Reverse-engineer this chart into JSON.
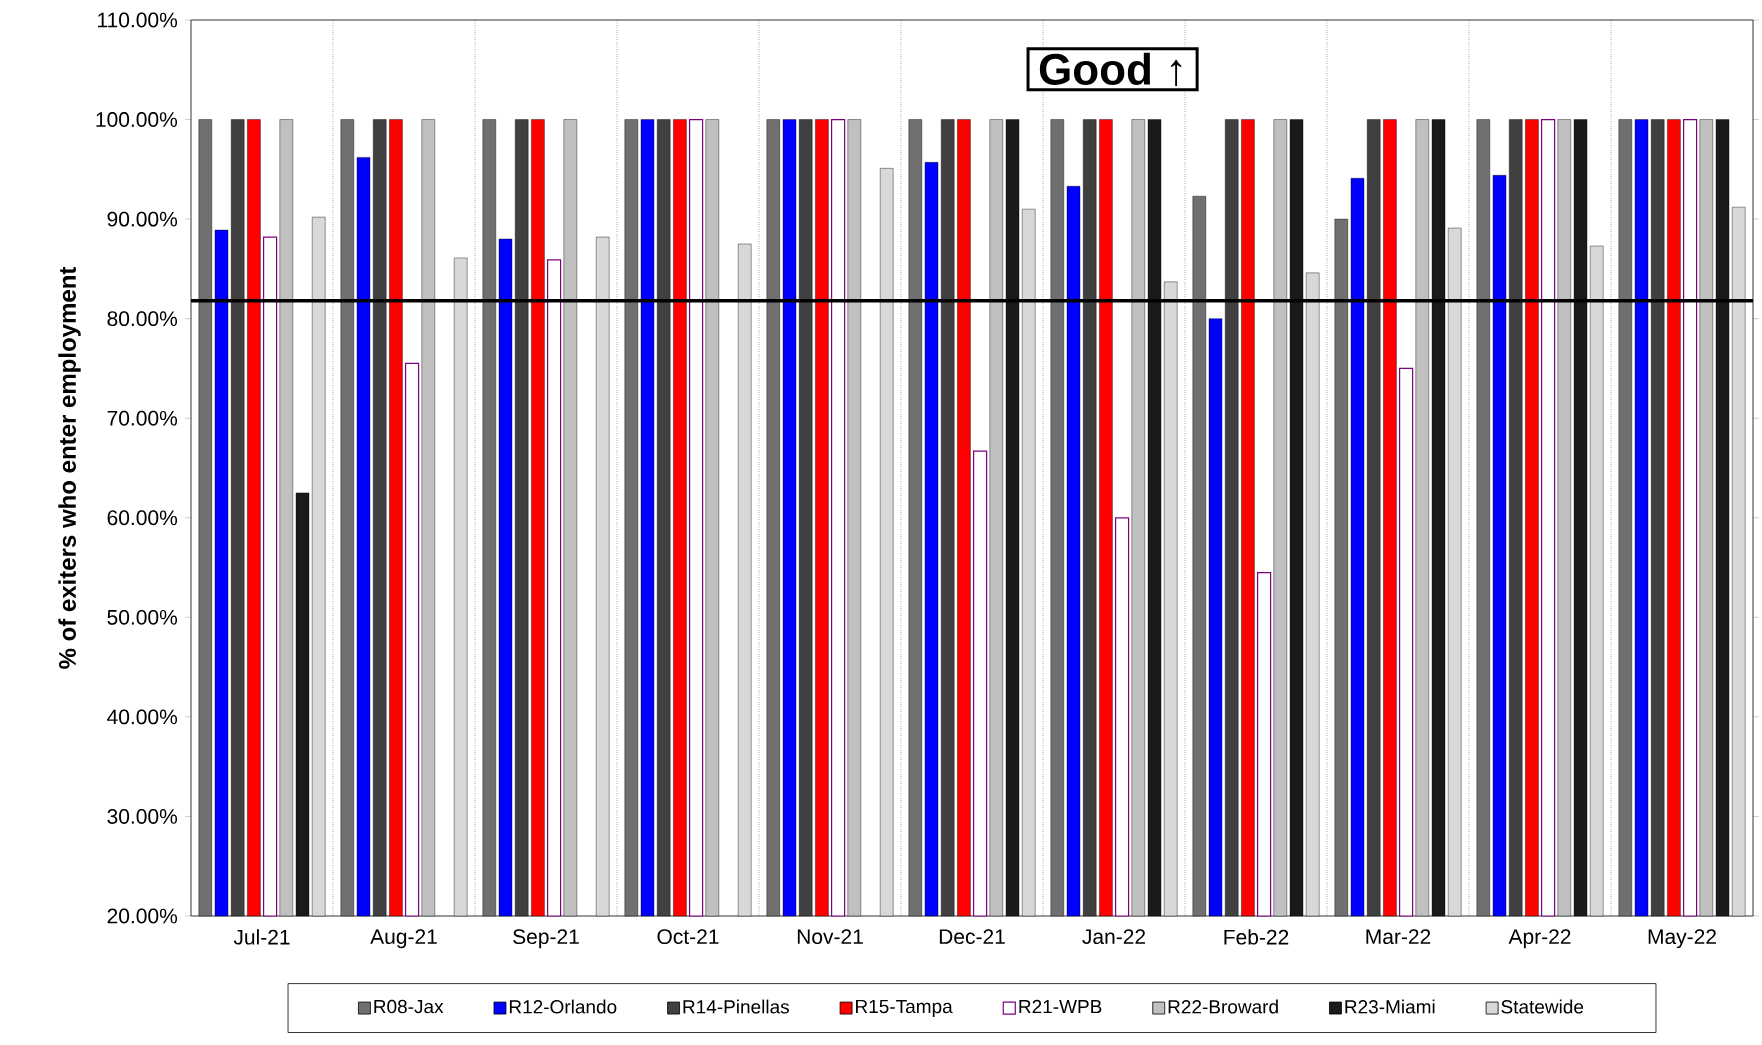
{
  "chart_data": {
    "type": "bar",
    "ylabel": "% of exiters who enter employment",
    "categories": [
      "Jul-21",
      "Aug-21",
      "Sep-21",
      "Oct-21",
      "Nov-21",
      "Dec-21",
      "Jan-22",
      "Feb-22",
      "Mar-22",
      "Apr-22",
      "May-22"
    ],
    "series": [
      {
        "name": "R08-Jax",
        "color": "#707070",
        "values": [
          100,
          100,
          100,
          100,
          100,
          100,
          100,
          92.3,
          90.0,
          100,
          100
        ]
      },
      {
        "name": "R12-Orlando",
        "color": "#0000ff",
        "values": [
          88.9,
          96.2,
          88.0,
          100,
          100,
          95.7,
          93.3,
          80.0,
          94.1,
          94.4,
          100
        ]
      },
      {
        "name": "R14-Pinellas",
        "color": "#404040",
        "values": [
          100,
          100,
          100,
          100,
          100,
          100,
          100,
          100,
          100,
          100,
          100
        ]
      },
      {
        "name": "R15-Tampa",
        "color": "#ff0000",
        "values": [
          100,
          100,
          100,
          100,
          100,
          100,
          100,
          100,
          100,
          100,
          100
        ]
      },
      {
        "name": "R21-WPB",
        "color": "#800080",
        "values": [
          88.2,
          75.5,
          85.9,
          100,
          100,
          66.7,
          60.0,
          54.5,
          75.0,
          100,
          100
        ]
      },
      {
        "name": "R22-Broward",
        "color": "#c0c0c0",
        "values": [
          100,
          100,
          100,
          100,
          100,
          100,
          100,
          100,
          100,
          100,
          100
        ]
      },
      {
        "name": "R23-Miami",
        "color": "#1a1a1a",
        "values": [
          62.5,
          null,
          null,
          null,
          null,
          100,
          100,
          100,
          100,
          100,
          100
        ]
      },
      {
        "name": "Statewide",
        "color": "#d8d8d8",
        "values": [
          90.2,
          86.1,
          88.2,
          87.5,
          95.1,
          91.0,
          83.7,
          84.6,
          89.1,
          87.3,
          91.2
        ]
      }
    ],
    "ylim": [
      20,
      110
    ],
    "yticks": [
      {
        "value": 20,
        "label": "20.00%"
      },
      {
        "value": 30,
        "label": "30.00%"
      },
      {
        "value": 40,
        "label": "40.00%"
      },
      {
        "value": 50,
        "label": "50.00%"
      },
      {
        "value": 60,
        "label": "60.00%"
      },
      {
        "value": 70,
        "label": "70.00%"
      },
      {
        "value": 80,
        "label": "80.00%"
      },
      {
        "value": 90,
        "label": "90.00%"
      },
      {
        "value": 100,
        "label": "100.00%"
      },
      {
        "value": 110,
        "label": "110.00%"
      }
    ],
    "ref_lines": [
      {
        "axis": "y",
        "value": 81.8,
        "color": "#000000"
      }
    ],
    "annotations": [
      "Good ↑"
    ],
    "grid": "x",
    "legend": "bottom"
  }
}
